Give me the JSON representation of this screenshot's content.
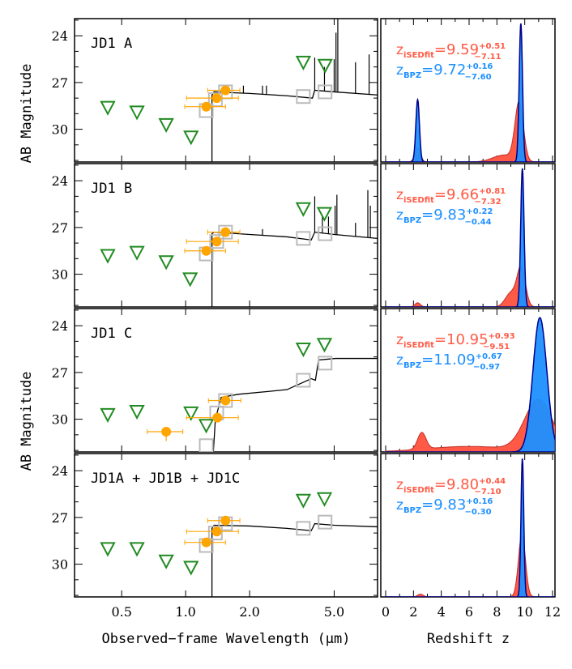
{
  "colors": {
    "upper_limit": "#228B22",
    "detection": "#FFA500",
    "model": "#BBBBBB",
    "spectrum": "#000000",
    "isedfit": "#FF5A45",
    "bpz": "#1E90FF",
    "bpz_edge": "#00008B"
  },
  "chart_data": [
    {
      "type": "scatter",
      "panel": "JD1 A",
      "label": "JD1 A",
      "upper_limits": {
        "x": [
          0.43,
          0.59,
          0.81,
          1.06,
          3.58,
          4.53
        ],
        "y": [
          28.6,
          28.9,
          29.7,
          30.5,
          25.7,
          25.9
        ]
      },
      "detections": {
        "x": [
          1.25,
          1.4,
          1.54
        ],
        "y": [
          28.55,
          28.0,
          27.5
        ],
        "xerr": [
          [
            0.99,
            1.54
          ],
          [
            1.01,
            1.77
          ],
          [
            1.27,
            1.8
          ]
        ]
      },
      "model_photometry": {
        "x": [
          1.25,
          1.38,
          1.54,
          3.58,
          4.53
        ],
        "y": [
          28.8,
          28.1,
          27.6,
          27.9,
          27.6
        ]
      },
      "spectrum": [
        [
          1.33,
          32.1
        ],
        [
          1.33,
          27.8
        ],
        [
          1.36,
          27.6
        ],
        [
          2.0,
          27.7
        ],
        [
          3.0,
          27.85
        ],
        [
          3.95,
          28.0
        ],
        [
          4.05,
          27.5
        ],
        [
          5.0,
          27.6
        ],
        [
          8.0,
          27.8
        ]
      ],
      "emission_lines": [
        [
          4.05,
          25.4
        ],
        [
          4.5,
          26.0
        ],
        [
          5.0,
          25.5
        ],
        [
          5.1,
          23.8
        ],
        [
          5.2,
          22.9
        ],
        [
          6.3,
          25.7
        ],
        [
          7.3,
          25.2
        ],
        [
          1.87,
          27.2
        ],
        [
          2.3,
          27.2
        ],
        [
          2.4,
          27.2
        ]
      ],
      "pz": {
        "isedfit_label": "z",
        "isedfit_sub": "iSEDfit",
        "isedfit_val": "=9.59",
        "isedfit_up": "+0.51",
        "isedfit_lo": "−7.11",
        "bpz_label": "z",
        "bpz_sub": "BPZ",
        "bpz_val": "=9.72",
        "bpz_up": "+0.16",
        "bpz_lo": "−7.60",
        "bpz": [
          [
            9.72,
            0.12,
            1.0
          ],
          [
            2.3,
            0.13,
            0.45
          ]
        ],
        "isedfit": [
          [
            9.6,
            0.3,
            0.42
          ],
          [
            2.3,
            0.2,
            0.1
          ],
          [
            8.5,
            0.8,
            0.05
          ]
        ]
      }
    },
    {
      "type": "scatter",
      "panel": "JD1 B",
      "label": "JD1 B",
      "upper_limits": {
        "x": [
          0.43,
          0.59,
          0.81,
          1.05,
          3.58,
          4.5
        ],
        "y": [
          28.8,
          28.6,
          29.2,
          30.3,
          25.8,
          26.1
        ]
      },
      "detections": {
        "x": [
          1.25,
          1.4,
          1.54
        ],
        "y": [
          28.5,
          27.9,
          27.3
        ],
        "xerr": [
          [
            0.99,
            1.54
          ],
          [
            1.01,
            1.77
          ],
          [
            1.27,
            1.8
          ]
        ]
      },
      "model_photometry": {
        "x": [
          1.25,
          1.4,
          1.54,
          3.58,
          4.53
        ],
        "y": [
          28.7,
          27.9,
          27.3,
          27.7,
          27.4
        ]
      },
      "spectrum": [
        [
          1.33,
          32.1
        ],
        [
          1.33,
          27.4
        ],
        [
          1.36,
          27.3
        ],
        [
          2.0,
          27.45
        ],
        [
          3.0,
          27.6
        ],
        [
          3.9,
          27.8
        ],
        [
          4.05,
          27.3
        ],
        [
          5.0,
          27.45
        ],
        [
          8.0,
          27.7
        ]
      ],
      "emission_lines": [
        [
          4.05,
          25.0
        ],
        [
          4.4,
          26.3
        ],
        [
          4.7,
          26.3
        ],
        [
          5.05,
          25.6
        ],
        [
          5.15,
          24.9
        ],
        [
          6.3,
          26.7
        ],
        [
          7.2,
          24.6
        ],
        [
          7.4,
          25.6
        ],
        [
          2.3,
          27.1
        ]
      ],
      "pz": {
        "isedfit_label": "z",
        "isedfit_sub": "iSEDfit",
        "isedfit_val": "=9.66",
        "isedfit_up": "+0.81",
        "isedfit_lo": "−7.32",
        "bpz_label": "z",
        "bpz_sub": "BPZ",
        "bpz_val": "=9.83",
        "bpz_up": "+0.22",
        "bpz_lo": "−0.44",
        "bpz": [
          [
            9.83,
            0.12,
            1.0
          ]
        ],
        "isedfit": [
          [
            9.75,
            0.3,
            0.28
          ],
          [
            9.0,
            0.4,
            0.1
          ],
          [
            2.3,
            0.2,
            0.03
          ]
        ]
      }
    },
    {
      "type": "scatter",
      "panel": "JD1 C",
      "label": "JD1 C",
      "upper_limits": {
        "x": [
          0.43,
          0.59,
          1.06,
          1.25,
          3.58,
          4.5
        ],
        "y": [
          29.7,
          29.5,
          29.6,
          30.4,
          25.5,
          25.2
        ]
      },
      "detections": {
        "x": [
          0.81,
          1.41,
          1.54
        ],
        "y": [
          30.8,
          29.9,
          28.8
        ],
        "xerr": [
          [
            0.66,
            0.97
          ],
          [
            1.01,
            1.77
          ],
          [
            1.28,
            1.82
          ]
        ],
        "yerr": [
          [
            30.5,
            31.4
          ],
          [
            29.6,
            30.2
          ],
          [
            28.6,
            29.0
          ]
        ]
      },
      "model_photometry": {
        "x": [
          1.25,
          1.4,
          1.54,
          3.58,
          4.53
        ],
        "y": [
          31.7,
          29.6,
          28.8,
          27.5,
          26.4
        ]
      },
      "spectrum": [
        [
          1.35,
          32.1
        ],
        [
          1.38,
          30.0
        ],
        [
          1.47,
          28.6
        ],
        [
          1.77,
          28.4
        ],
        [
          2.52,
          28.2
        ],
        [
          3.0,
          28.1
        ],
        [
          3.9,
          27.4
        ],
        [
          4.08,
          27.5
        ],
        [
          4.22,
          26.2
        ],
        [
          5.08,
          26.1
        ],
        [
          8.0,
          26.1
        ]
      ],
      "emission_lines": [],
      "pz": {
        "isedfit_label": "z",
        "isedfit_sub": "iSEDfit",
        "isedfit_val": "=10.95",
        "isedfit_up": "+0.93",
        "isedfit_lo": "−9.51",
        "bpz_label": "z",
        "bpz_sub": "BPZ",
        "bpz_val": "=11.09",
        "bpz_up": "+0.67",
        "bpz_lo": "−0.97",
        "bpz": [
          [
            11.09,
            0.5,
            0.97
          ]
        ],
        "isedfit": [
          [
            11.0,
            1.0,
            0.37
          ],
          [
            2.6,
            0.3,
            0.12
          ],
          [
            6.0,
            3.0,
            0.04
          ]
        ]
      }
    },
    {
      "type": "scatter",
      "panel": "JD1A + JD1B + JD1C",
      "label": "JD1A + JD1B + JD1C",
      "upper_limits": {
        "x": [
          0.43,
          0.59,
          0.81,
          1.06,
          3.58,
          4.5
        ],
        "y": [
          29.0,
          29.0,
          29.8,
          30.2,
          25.9,
          25.8
        ]
      },
      "detections": {
        "x": [
          1.25,
          1.4,
          1.54
        ],
        "y": [
          28.6,
          27.9,
          27.2
        ],
        "xerr": [
          [
            0.99,
            1.54
          ],
          [
            1.01,
            1.77
          ],
          [
            1.27,
            1.8
          ]
        ]
      },
      "model_photometry": {
        "x": [
          1.25,
          1.38,
          1.54,
          3.58,
          4.53
        ],
        "y": [
          28.8,
          28.0,
          27.4,
          27.7,
          27.3
        ]
      },
      "spectrum": [
        [
          1.33,
          32.1
        ],
        [
          1.33,
          27.7
        ],
        [
          1.36,
          27.5
        ],
        [
          2.0,
          27.55
        ],
        [
          3.0,
          27.7
        ],
        [
          3.9,
          27.85
        ],
        [
          4.05,
          27.4
        ],
        [
          5.0,
          27.5
        ],
        [
          8.0,
          27.6
        ]
      ],
      "emission_lines": [],
      "pz": {
        "isedfit_label": "z",
        "isedfit_sub": "iSEDfit",
        "isedfit_val": "=9.80",
        "isedfit_up": "+0.44",
        "isedfit_lo": "−7.10",
        "bpz_label": "z",
        "bpz_sub": "BPZ",
        "bpz_val": "=9.83",
        "bpz_up": "+0.16",
        "bpz_lo": "−0.30",
        "bpz": [
          [
            9.83,
            0.1,
            1.0
          ]
        ],
        "isedfit": [
          [
            9.8,
            0.25,
            0.45
          ],
          [
            2.5,
            0.2,
            0.02
          ]
        ]
      }
    }
  ],
  "axes": {
    "left": {
      "xlabel": "Observed−frame Wavelength (μm)",
      "ylabel": "AB Magnitude",
      "xscale": "log",
      "xlim": [
        0.3,
        8.0
      ],
      "ylim": [
        32.1,
        22.9
      ],
      "xticks": [
        "0.5",
        "1.0",
        "2.0",
        "5.0"
      ],
      "yticks": [
        "24",
        "27",
        "30"
      ]
    },
    "right": {
      "xlabel": "Redshift z",
      "xlim": [
        0,
        12
      ],
      "xticks": [
        "0",
        "2",
        "4",
        "6",
        "8",
        "10",
        "12"
      ]
    }
  }
}
